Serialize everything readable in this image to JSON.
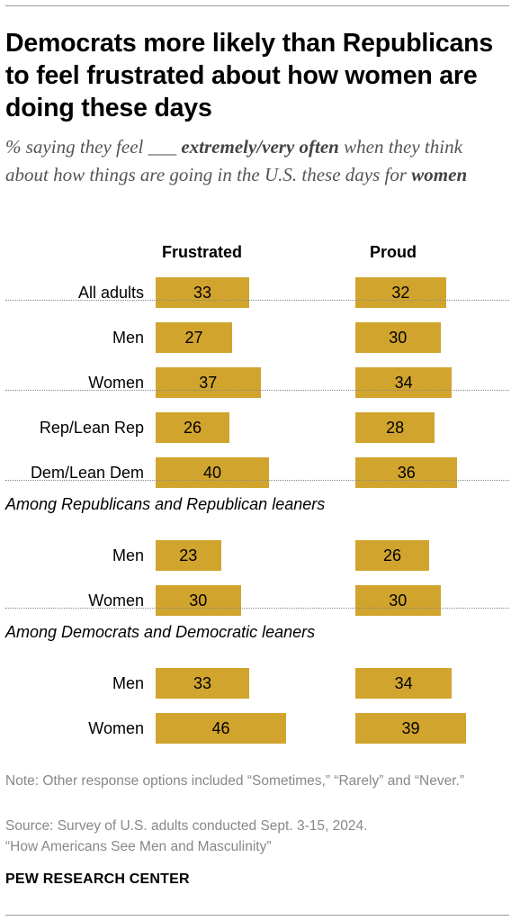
{
  "header": {
    "title": "Democrats more likely than Republicans to feel frustrated about how women are doing these days",
    "subtitle_prefix": "% saying they feel ___ ",
    "subtitle_emph": "extremely/very often",
    "subtitle_mid": " when they think about how things are going in the U.S. these days for ",
    "subtitle_emph2": "women"
  },
  "chart_data": {
    "type": "bar",
    "columns": [
      "Frustrated",
      "Proud"
    ],
    "groups": [
      {
        "heading": "",
        "rows": [
          {
            "label": "All adults",
            "values": [
              33,
              32
            ]
          }
        ]
      },
      {
        "heading": "",
        "rows": [
          {
            "label": "Men",
            "values": [
              27,
              30
            ]
          },
          {
            "label": "Women",
            "values": [
              37,
              34
            ]
          }
        ]
      },
      {
        "heading": "",
        "rows": [
          {
            "label": "Rep/Lean Rep",
            "values": [
              26,
              28
            ]
          },
          {
            "label": "Dem/Lean Dem",
            "values": [
              40,
              36
            ]
          }
        ]
      },
      {
        "heading": "Among Republicans and Republican leaners",
        "rows": [
          {
            "label": "Men",
            "values": [
              23,
              26
            ]
          },
          {
            "label": "Women",
            "values": [
              30,
              30
            ]
          }
        ]
      },
      {
        "heading": "Among Democrats and Democratic leaners",
        "rows": [
          {
            "label": "Men",
            "values": [
              33,
              34
            ]
          },
          {
            "label": "Women",
            "values": [
              46,
              39
            ]
          }
        ]
      }
    ],
    "bar_color": "#D1A42E",
    "scale_max": 100
  },
  "footer": {
    "note": "Note: Other response options included “Sometimes,” “Rarely” and “Never.”",
    "source": "Source: Survey of U.S. adults conducted Sept. 3-15, 2024.",
    "report": "“How Americans See Men and Masculinity”",
    "org": "PEW RESEARCH CENTER"
  }
}
